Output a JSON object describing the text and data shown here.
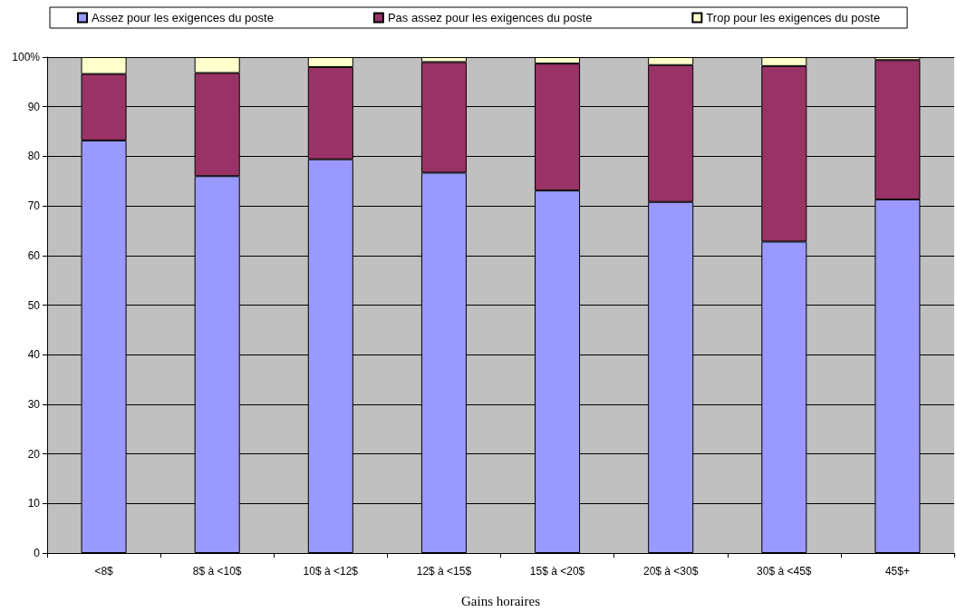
{
  "chart_data": {
    "type": "bar",
    "stacked": true,
    "xlabel": "Gains horaires",
    "categories": [
      "<8$",
      "8$ à <10$",
      "10$ à <12$",
      "12$ à <15$",
      "15$ à <20$",
      "20$ à <30$",
      "30$ à <45$",
      "45$+"
    ],
    "series": [
      {
        "name": "Assez pour les exigences du poste",
        "color": "#9999ff",
        "values": [
          83.2,
          76.0,
          79.4,
          76.7,
          73.1,
          70.8,
          62.8,
          71.3
        ]
      },
      {
        "name": "Pas assez pour les exigences du poste",
        "color": "#993366",
        "values": [
          13.4,
          20.8,
          18.6,
          22.3,
          25.6,
          27.6,
          35.4,
          28.1
        ]
      },
      {
        "name": "Trop pour les exigences du poste",
        "color": "#ffffcc",
        "values": [
          3.4,
          3.2,
          2.0,
          1.0,
          1.3,
          1.6,
          1.8,
          0.6
        ]
      }
    ],
    "ylim": [
      0,
      100
    ],
    "yticks": [
      0,
      10,
      20,
      30,
      40,
      50,
      60,
      70,
      80,
      90,
      {
        "value": 100,
        "label": "100%"
      }
    ],
    "grid": "y",
    "legend": "top"
  }
}
